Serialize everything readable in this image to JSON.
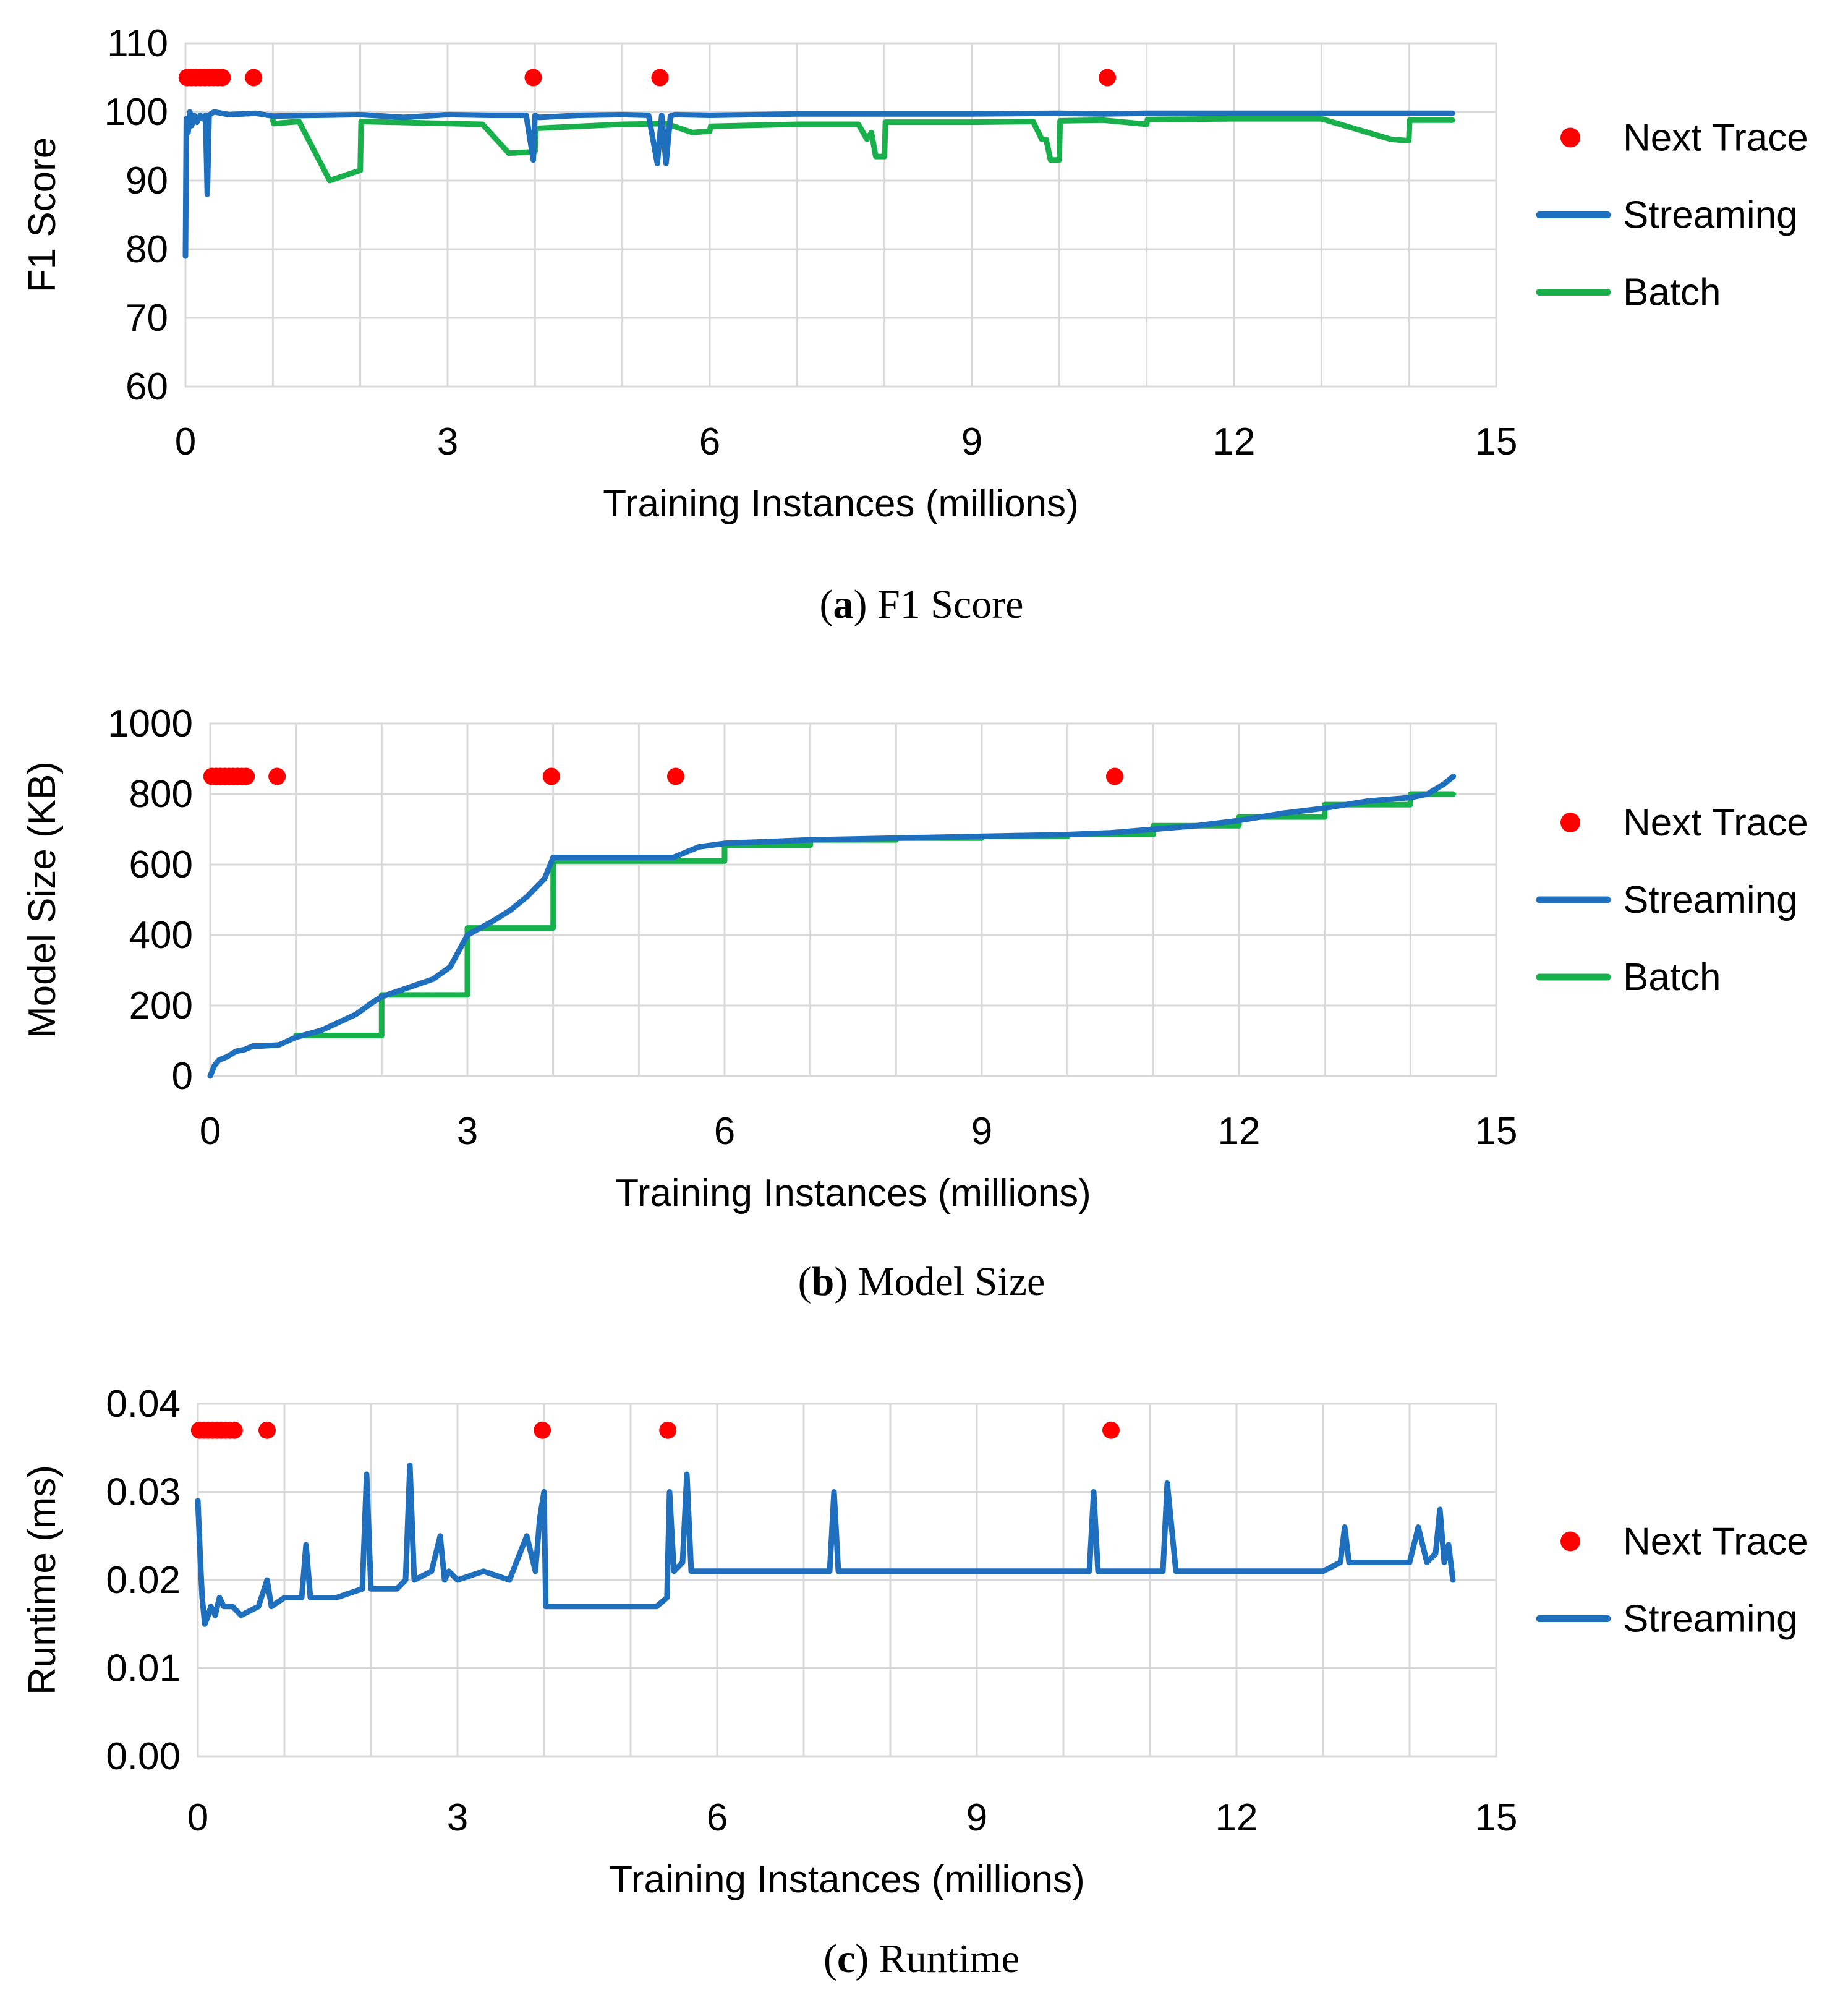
{
  "colors": {
    "next_trace": "#ff0000",
    "streaming": "#1f6fbf",
    "batch": "#18b04a",
    "grid": "#d9d9d9"
  },
  "chart_data": [
    {
      "type": "line",
      "caption_letter": "a",
      "caption_text": "F1 Score",
      "xlabel": "Training Instances (millions)",
      "ylabel": "F1 Score",
      "xlim": [
        0,
        15
      ],
      "ylim": [
        60,
        110
      ],
      "xticks": [
        0,
        3,
        6,
        9,
        12,
        15
      ],
      "yticks": [
        60,
        70,
        80,
        90,
        100,
        110
      ],
      "xtick_labels": [
        "0",
        "3",
        "6",
        "9",
        "12",
        "15"
      ],
      "ytick_labels": [
        "60",
        "70",
        "80",
        "90",
        "100",
        "110"
      ],
      "legend": [
        "Next Trace",
        "Streaming",
        "Batch"
      ],
      "series": [
        {
          "name": "Next Trace",
          "kind": "markers",
          "y": 105,
          "x": [
            0.02,
            0.07,
            0.12,
            0.17,
            0.22,
            0.27,
            0.32,
            0.37,
            0.42,
            0.78,
            3.98,
            5.43,
            10.55
          ]
        },
        {
          "name": "Streaming",
          "kind": "line",
          "x": [
            0.0,
            0.01,
            0.03,
            0.05,
            0.07,
            0.1,
            0.13,
            0.17,
            0.2,
            0.23,
            0.25,
            0.27,
            0.3,
            0.33,
            0.5,
            0.8,
            1.0,
            1.5,
            2.0,
            2.5,
            3.0,
            3.5,
            3.9,
            3.98,
            4.0,
            4.05,
            4.5,
            5.0,
            5.3,
            5.4,
            5.45,
            5.5,
            5.55,
            5.6,
            6.0,
            6.5,
            7.0,
            8.0,
            9.0,
            10.0,
            10.5,
            11.0,
            12.0,
            13.0,
            14.0,
            14.5
          ],
          "y": [
            79,
            99,
            97,
            100,
            98,
            99.5,
            98.5,
            99.5,
            99,
            99.5,
            88,
            99.5,
            99.8,
            100,
            99.6,
            99.8,
            99.4,
            99.5,
            99.6,
            99.2,
            99.6,
            99.5,
            99.5,
            93,
            99.5,
            99.2,
            99.5,
            99.6,
            99.5,
            92.5,
            99.5,
            92.5,
            99.4,
            99.6,
            99.5,
            99.6,
            99.7,
            99.7,
            99.7,
            99.8,
            99.7,
            99.8,
            99.8,
            99.8,
            99.8,
            99.8
          ]
        },
        {
          "name": "Batch",
          "kind": "line",
          "x": [
            1.0,
            1.01,
            1.3,
            1.65,
            2.0,
            2.01,
            3.4,
            3.7,
            4.0,
            4.01,
            5.0,
            5.5,
            5.8,
            6.0,
            6.01,
            7.0,
            7.7,
            7.8,
            7.85,
            7.9,
            8.0,
            8.01,
            9.0,
            9.7,
            9.8,
            9.85,
            9.9,
            10.0,
            10.01,
            10.5,
            11.0,
            11.01,
            12.0,
            13.0,
            13.4,
            13.8,
            14.0,
            14.01,
            14.5
          ],
          "y": [
            98.8,
            98.3,
            98.6,
            90,
            91.5,
            98.6,
            98.2,
            94,
            94.2,
            97.6,
            98.2,
            98.3,
            97,
            97.2,
            97.9,
            98.2,
            98.2,
            96,
            97,
            93.5,
            93.5,
            98.5,
            98.5,
            98.6,
            96,
            96,
            93,
            93,
            98.7,
            98.8,
            98.2,
            98.9,
            99,
            99,
            97.5,
            96,
            95.8,
            98.8,
            98.8
          ]
        }
      ]
    },
    {
      "type": "line",
      "caption_letter": "b",
      "caption_text": "Model Size",
      "xlabel": "Training Instances (millions)",
      "ylabel": "Model Size (KB)",
      "xlim": [
        0,
        15
      ],
      "ylim": [
        0,
        1000
      ],
      "xticks": [
        0,
        3,
        6,
        9,
        12,
        15
      ],
      "yticks": [
        0,
        200,
        400,
        600,
        800,
        1000
      ],
      "xtick_labels": [
        "0",
        "3",
        "6",
        "9",
        "12",
        "15"
      ],
      "ytick_labels": [
        "0",
        "200",
        "400",
        "600",
        "800",
        "1000"
      ],
      "legend": [
        "Next Trace",
        "Streaming",
        "Batch"
      ],
      "series": [
        {
          "name": "Next Trace",
          "kind": "markers",
          "y": 850,
          "x": [
            0.02,
            0.07,
            0.12,
            0.17,
            0.22,
            0.27,
            0.32,
            0.37,
            0.42,
            0.78,
            3.98,
            5.43,
            10.55
          ]
        },
        {
          "name": "Streaming",
          "kind": "line",
          "x": [
            0.0,
            0.05,
            0.1,
            0.2,
            0.3,
            0.4,
            0.5,
            0.6,
            0.8,
            1.0,
            1.3,
            1.7,
            1.9,
            2.0,
            2.3,
            2.6,
            2.8,
            3.0,
            3.3,
            3.5,
            3.7,
            3.9,
            4.0,
            5.0,
            5.4,
            5.5,
            5.7,
            6.0,
            7.0,
            8.0,
            9.0,
            10.0,
            10.5,
            11.0,
            11.5,
            12.0,
            12.5,
            13.0,
            13.5,
            14.0,
            14.2,
            14.4,
            14.5
          ],
          "y": [
            0,
            30,
            45,
            55,
            70,
            75,
            85,
            85,
            88,
            110,
            130,
            175,
            210,
            225,
            250,
            275,
            310,
            400,
            440,
            470,
            510,
            560,
            620,
            620,
            620,
            630,
            650,
            660,
            670,
            675,
            680,
            685,
            690,
            700,
            710,
            725,
            745,
            760,
            780,
            790,
            800,
            830,
            850
          ]
        },
        {
          "name": "Batch",
          "kind": "line",
          "x": [
            1.0,
            2.0,
            2.0,
            3.0,
            3.0,
            4.0,
            4.0,
            6.0,
            6.0,
            7.0,
            7.0,
            8.0,
            8.0,
            9.0,
            9.0,
            10.0,
            10.0,
            11.0,
            11.0,
            12.0,
            12.0,
            13.0,
            13.0,
            14.0,
            14.0,
            14.5
          ],
          "y": [
            115,
            115,
            230,
            230,
            420,
            420,
            610,
            610,
            655,
            655,
            670,
            670,
            675,
            675,
            680,
            680,
            685,
            685,
            710,
            710,
            735,
            735,
            770,
            770,
            800,
            800
          ]
        }
      ]
    },
    {
      "type": "line",
      "caption_letter": "c",
      "caption_text": "Runtime",
      "xlabel": "Training Instances (millions)",
      "ylabel": "Runtime (ms)",
      "xlim": [
        0,
        15
      ],
      "ylim": [
        0,
        0.04
      ],
      "xticks": [
        0,
        3,
        6,
        9,
        12,
        15
      ],
      "yticks": [
        0,
        0.01,
        0.02,
        0.03,
        0.04
      ],
      "xtick_labels": [
        "0",
        "3",
        "6",
        "9",
        "12",
        "15"
      ],
      "ytick_labels": [
        "0.00",
        "0.01",
        "0.02",
        "0.03",
        "0.04"
      ],
      "legend": [
        "Next Trace",
        "Streaming"
      ],
      "series": [
        {
          "name": "Next Trace",
          "kind": "markers",
          "y": 0.037,
          "x": [
            0.02,
            0.07,
            0.12,
            0.17,
            0.22,
            0.27,
            0.32,
            0.37,
            0.42,
            0.8,
            3.98,
            5.43,
            10.55
          ]
        },
        {
          "name": "Streaming",
          "kind": "line",
          "x": [
            0.0,
            0.03,
            0.05,
            0.08,
            0.12,
            0.15,
            0.2,
            0.25,
            0.3,
            0.4,
            0.5,
            0.7,
            0.8,
            0.85,
            1.0,
            1.2,
            1.25,
            1.3,
            1.6,
            1.9,
            1.95,
            2.0,
            2.3,
            2.4,
            2.45,
            2.5,
            2.7,
            2.8,
            2.85,
            2.9,
            3.0,
            3.3,
            3.6,
            3.8,
            3.9,
            3.95,
            4.0,
            4.02,
            4.5,
            5.0,
            5.3,
            5.42,
            5.45,
            5.5,
            5.6,
            5.65,
            5.7,
            6.0,
            6.5,
            7.0,
            7.3,
            7.35,
            7.4,
            8.0,
            9.0,
            10.0,
            10.3,
            10.35,
            10.4,
            10.6,
            11.0,
            11.15,
            11.2,
            11.3,
            12.0,
            12.5,
            13.0,
            13.2,
            13.25,
            13.3,
            13.5,
            14.0,
            14.1,
            14.2,
            14.3,
            14.35,
            14.4,
            14.45,
            14.5
          ],
          "y": [
            0.029,
            0.022,
            0.018,
            0.015,
            0.016,
            0.017,
            0.016,
            0.018,
            0.017,
            0.017,
            0.016,
            0.017,
            0.02,
            0.017,
            0.018,
            0.018,
            0.024,
            0.018,
            0.018,
            0.019,
            0.032,
            0.019,
            0.019,
            0.02,
            0.033,
            0.02,
            0.021,
            0.025,
            0.02,
            0.021,
            0.02,
            0.021,
            0.02,
            0.025,
            0.021,
            0.027,
            0.03,
            0.017,
            0.017,
            0.017,
            0.017,
            0.018,
            0.03,
            0.021,
            0.022,
            0.032,
            0.021,
            0.021,
            0.021,
            0.021,
            0.021,
            0.03,
            0.021,
            0.021,
            0.021,
            0.021,
            0.021,
            0.03,
            0.021,
            0.021,
            0.021,
            0.021,
            0.031,
            0.021,
            0.021,
            0.021,
            0.021,
            0.022,
            0.026,
            0.022,
            0.022,
            0.022,
            0.026,
            0.022,
            0.023,
            0.028,
            0.022,
            0.024,
            0.02
          ]
        }
      ]
    }
  ]
}
